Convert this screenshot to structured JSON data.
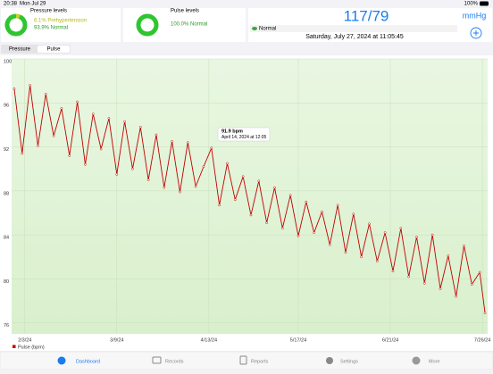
{
  "status_bar": {
    "time": "20:38",
    "date": "Mon Jul 29",
    "battery": "100%"
  },
  "summary": {
    "pressure": {
      "title": "Pressure levels",
      "items": [
        {
          "text": "6.1% Prehypertension",
          "value": 6.1,
          "color": "#c7cf2a"
        },
        {
          "text": "93.9% Normal",
          "value": 93.9,
          "color": "#2fc52f"
        }
      ]
    },
    "pulse": {
      "title": "Pulse levels",
      "items": [
        {
          "text": "100.0% Normal",
          "value": 100.0,
          "color": "#2fc52f"
        }
      ]
    },
    "reading": {
      "value": "117/79",
      "unit": "mmHg",
      "status": "Normal",
      "timestamp": "Saturday, July 27, 2024 at 11:05:45"
    }
  },
  "tabs": {
    "items": [
      "Pressure",
      "Pulse"
    ],
    "active": 1
  },
  "chart_data": {
    "type": "line",
    "x": [
      "2024-01-30",
      "2024-02-02",
      "2024-02-05",
      "2024-02-08",
      "2024-02-11",
      "2024-02-14",
      "2024-02-17",
      "2024-02-20",
      "2024-02-23",
      "2024-02-26",
      "2024-02-29",
      "2024-03-03",
      "2024-03-06",
      "2024-03-09",
      "2024-03-12",
      "2024-03-15",
      "2024-03-18",
      "2024-03-21",
      "2024-03-24",
      "2024-03-27",
      "2024-03-30",
      "2024-04-02",
      "2024-04-05",
      "2024-04-08",
      "2024-04-11",
      "2024-04-14",
      "2024-04-17",
      "2024-04-20",
      "2024-04-23",
      "2024-04-26",
      "2024-04-29",
      "2024-05-02",
      "2024-05-05",
      "2024-05-08",
      "2024-05-11",
      "2024-05-14",
      "2024-05-17",
      "2024-05-20",
      "2024-05-23",
      "2024-05-26",
      "2024-05-29",
      "2024-06-01",
      "2024-06-04",
      "2024-06-07",
      "2024-06-10",
      "2024-06-13",
      "2024-06-16",
      "2024-06-19",
      "2024-06-22",
      "2024-06-25",
      "2024-06-28",
      "2024-07-01",
      "2024-07-04",
      "2024-07-07",
      "2024-07-10",
      "2024-07-13",
      "2024-07-16",
      "2024-07-19",
      "2024-07-22",
      "2024-07-25",
      "2024-07-27"
    ],
    "series": [
      {
        "name": "Pulse (bpm)",
        "color": "#c00000",
        "values": [
          97.3,
          91.4,
          97.6,
          92.1,
          96.8,
          93.0,
          95.5,
          91.2,
          96.1,
          90.4,
          95.0,
          91.8,
          94.6,
          89.5,
          94.3,
          90.0,
          93.8,
          89.0,
          93.1,
          88.3,
          92.5,
          87.9,
          92.4,
          88.4,
          90.2,
          91.9,
          86.7,
          90.5,
          87.2,
          89.3,
          85.8,
          88.9,
          85.1,
          88.3,
          84.6,
          87.6,
          83.9,
          87.0,
          84.2,
          86.1,
          83.1,
          86.7,
          82.4,
          85.9,
          82.0,
          85.0,
          81.6,
          84.2,
          80.7,
          84.6,
          80.2,
          83.8,
          79.6,
          84.0,
          79.1,
          82.1,
          78.4,
          83.0,
          79.5,
          80.6,
          76.9
        ]
      }
    ],
    "xlim": [
      "2024-01-29",
      "2024-07-28"
    ],
    "xticks": [
      {
        "value": "2024-02-03",
        "label": "2/3/24"
      },
      {
        "value": "2024-03-09",
        "label": "3/9/24"
      },
      {
        "value": "2024-04-13",
        "label": "4/13/24"
      },
      {
        "value": "2024-05-17",
        "label": "5/17/24"
      },
      {
        "value": "2024-06-21",
        "label": "6/21/24"
      },
      {
        "value": "2024-07-26",
        "label": "7/26/24"
      }
    ],
    "ylim": [
      75,
      100
    ],
    "yticks": [
      76,
      80,
      84,
      88,
      92,
      96,
      100
    ],
    "grid": true,
    "tooltip": {
      "title": "91.9 bpm",
      "subtitle": "April 14, 2024 at 12:05"
    }
  },
  "tab_bar": {
    "items": [
      "Dashboard",
      "Records",
      "Reports",
      "Settings",
      "More"
    ],
    "active": 0
  }
}
